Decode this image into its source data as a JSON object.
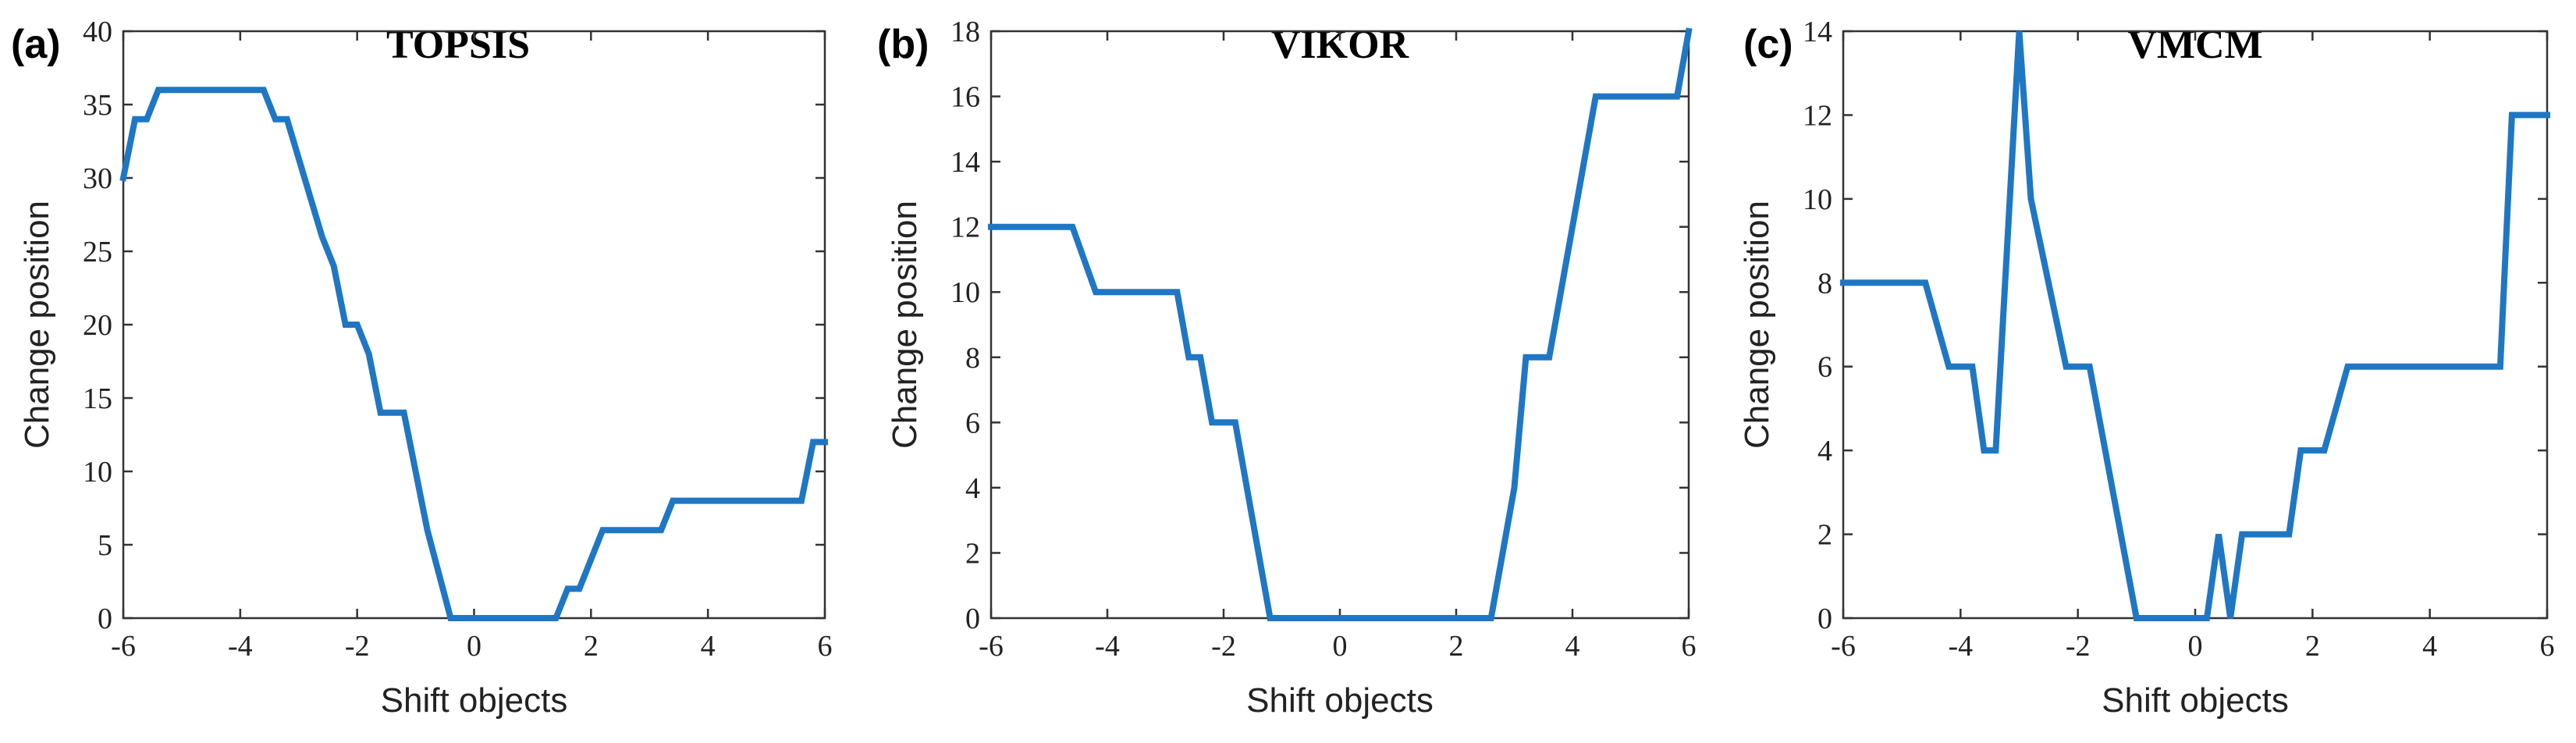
{
  "chart_data": [
    {
      "type": "line",
      "panel_label": "(a)",
      "title": "TOPSIS",
      "xlabel": "Shift objects",
      "ylabel": "Change position",
      "xlim": [
        -6,
        6
      ],
      "ylim": [
        0,
        40
      ],
      "xticks": [
        -6,
        -4,
        -2,
        0,
        2,
        4,
        6
      ],
      "yticks": [
        0,
        5,
        10,
        15,
        20,
        25,
        30,
        35,
        40
      ],
      "grid": false,
      "color": "#1f77c4",
      "series": [
        {
          "x": [
            -6,
            -5.8,
            -5.6,
            -5.4,
            -3.6,
            -3.4,
            -3.2,
            -2.6,
            -2.4,
            -2.2,
            -2.0,
            -1.8,
            -1.6,
            -1.2,
            -0.8,
            -0.4,
            1.4,
            1.6,
            1.8,
            2.2,
            3.2,
            3.4,
            5.6,
            5.8,
            6
          ],
          "y": [
            30,
            34,
            34,
            36,
            36,
            34,
            34,
            26,
            24,
            20,
            20,
            18,
            14,
            14,
            6,
            0,
            0,
            2,
            2,
            6,
            6,
            8,
            8,
            12,
            12
          ]
        }
      ]
    },
    {
      "type": "line",
      "panel_label": "(b)",
      "title": "VIKOR",
      "xlabel": "Shift objects",
      "ylabel": "Change position",
      "xlim": [
        -6,
        6
      ],
      "ylim": [
        0,
        18
      ],
      "xticks": [
        -6,
        -4,
        -2,
        0,
        2,
        4,
        6
      ],
      "yticks": [
        0,
        2,
        4,
        6,
        8,
        10,
        12,
        14,
        16,
        18
      ],
      "grid": false,
      "color": "#1f77c4",
      "series": [
        {
          "x": [
            -6,
            -4.6,
            -4.2,
            -2.8,
            -2.6,
            -2.4,
            -2.2,
            -1.8,
            -1.6,
            -1.2,
            2.6,
            3.0,
            3.2,
            3.6,
            4.0,
            4.4,
            5.8,
            6
          ],
          "y": [
            12,
            12,
            10,
            10,
            8,
            8,
            6,
            6,
            4,
            0,
            0,
            4,
            8,
            8,
            12,
            16,
            16,
            18
          ]
        }
      ]
    },
    {
      "type": "line",
      "panel_label": "(c)",
      "title": "VMCM",
      "xlabel": "Shift objects",
      "ylabel": "Change position",
      "xlim": [
        -6,
        6
      ],
      "ylim": [
        0,
        14
      ],
      "xticks": [
        -6,
        -4,
        -2,
        0,
        2,
        4,
        6
      ],
      "yticks": [
        0,
        2,
        4,
        6,
        8,
        10,
        12,
        14
      ],
      "grid": false,
      "color": "#1f77c4",
      "series": [
        {
          "x": [
            -6,
            -4.6,
            -4.2,
            -3.8,
            -3.6,
            -3.4,
            -3.0,
            -2.8,
            -2.2,
            -1.8,
            -1.0,
            0.0,
            0.2,
            0.4,
            0.6,
            0.8,
            1.6,
            1.8,
            2.2,
            2.6,
            5.2,
            5.4,
            6
          ],
          "y": [
            8,
            8,
            6,
            6,
            4,
            4,
            14,
            10,
            6,
            6,
            0,
            0,
            0,
            2,
            0,
            2,
            2,
            4,
            4,
            6,
            6,
            12,
            12
          ]
        }
      ]
    }
  ]
}
